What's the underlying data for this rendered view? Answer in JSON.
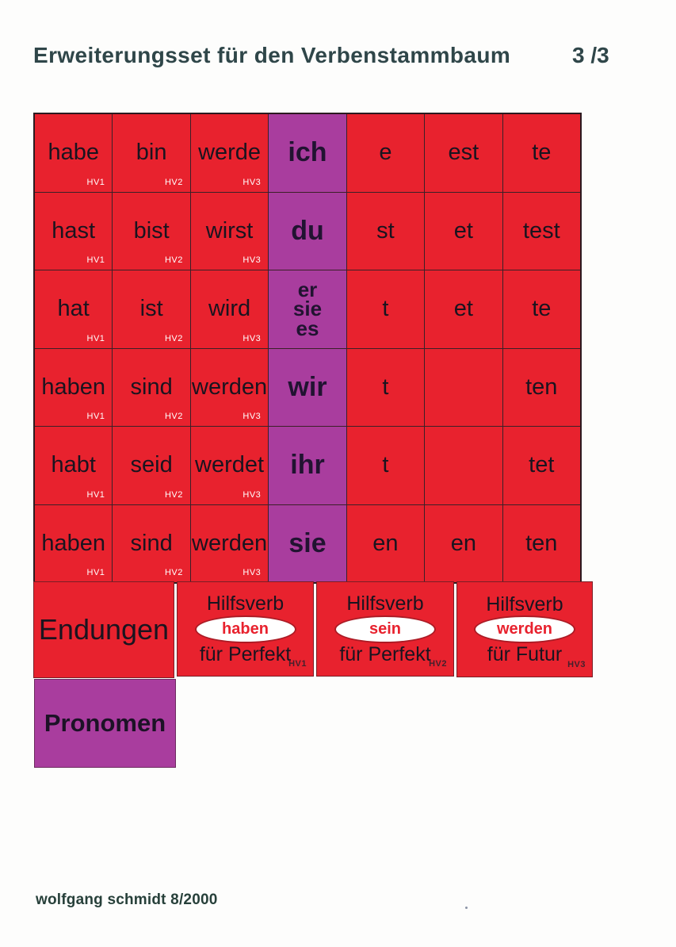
{
  "page": {
    "title": "Erweiterungsset für den Verbenstammbaum",
    "page_number": "3 /3",
    "credit": "wolfgang schmidt 8/2000"
  },
  "colors": {
    "card_red": "#e8222e",
    "card_purple": "#a93d9e",
    "text_dark": "#1a141f",
    "hv_label_white": "#ffffff",
    "oval_text_red": "#e8222e",
    "heading_text": "#2f4649"
  },
  "grid": {
    "columns": 7,
    "rows": 6,
    "cells": [
      {
        "text": "habe",
        "hv": "HV1"
      },
      {
        "text": "bin",
        "hv": "HV2"
      },
      {
        "text": "werde",
        "hv": "HV3"
      },
      {
        "text": "ich",
        "purple": true
      },
      {
        "text": "e"
      },
      {
        "text": "est"
      },
      {
        "text": "te"
      },
      {
        "text": "hast",
        "hv": "HV1"
      },
      {
        "text": "bist",
        "hv": "HV2"
      },
      {
        "text": "wirst",
        "hv": "HV3"
      },
      {
        "text": "du",
        "purple": true
      },
      {
        "text": "st"
      },
      {
        "text": "et"
      },
      {
        "text": "test"
      },
      {
        "text": "hat",
        "hv": "HV1"
      },
      {
        "text": "ist",
        "hv": "HV2"
      },
      {
        "text": "wird",
        "hv": "HV3"
      },
      {
        "text": "er\nsie\nes",
        "purple": true,
        "small": true
      },
      {
        "text": "t"
      },
      {
        "text": "et"
      },
      {
        "text": "te"
      },
      {
        "text": "haben",
        "hv": "HV1"
      },
      {
        "text": "sind",
        "hv": "HV2"
      },
      {
        "text": "werden",
        "hv": "HV3"
      },
      {
        "text": "wir",
        "purple": true
      },
      {
        "text": "t"
      },
      {
        "text": ""
      },
      {
        "text": "ten"
      },
      {
        "text": "habt",
        "hv": "HV1"
      },
      {
        "text": "seid",
        "hv": "HV2"
      },
      {
        "text": "werdet",
        "hv": "HV3"
      },
      {
        "text": "ihr",
        "purple": true
      },
      {
        "text": "t"
      },
      {
        "text": ""
      },
      {
        "text": "tet"
      },
      {
        "text": "haben",
        "hv": "HV1"
      },
      {
        "text": "sind",
        "hv": "HV2"
      },
      {
        "text": "werden",
        "hv": "HV3"
      },
      {
        "text": "sie",
        "purple": true
      },
      {
        "text": "en"
      },
      {
        "text": "en"
      },
      {
        "text": "ten"
      }
    ]
  },
  "bottom_row": {
    "endungen_label": "Endungen",
    "cards": [
      {
        "title": "Hilfsverb",
        "verb": "haben",
        "subtitle": "für Perfekt",
        "hv": "HV1"
      },
      {
        "title": "Hilfsverb",
        "verb": "sein",
        "subtitle": "für Perfekt",
        "hv": "HV2"
      },
      {
        "title": "Hilfsverb",
        "verb": "werden",
        "subtitle": "für Futur",
        "hv": "HV3"
      }
    ]
  },
  "pronomen_label": "Pronomen"
}
